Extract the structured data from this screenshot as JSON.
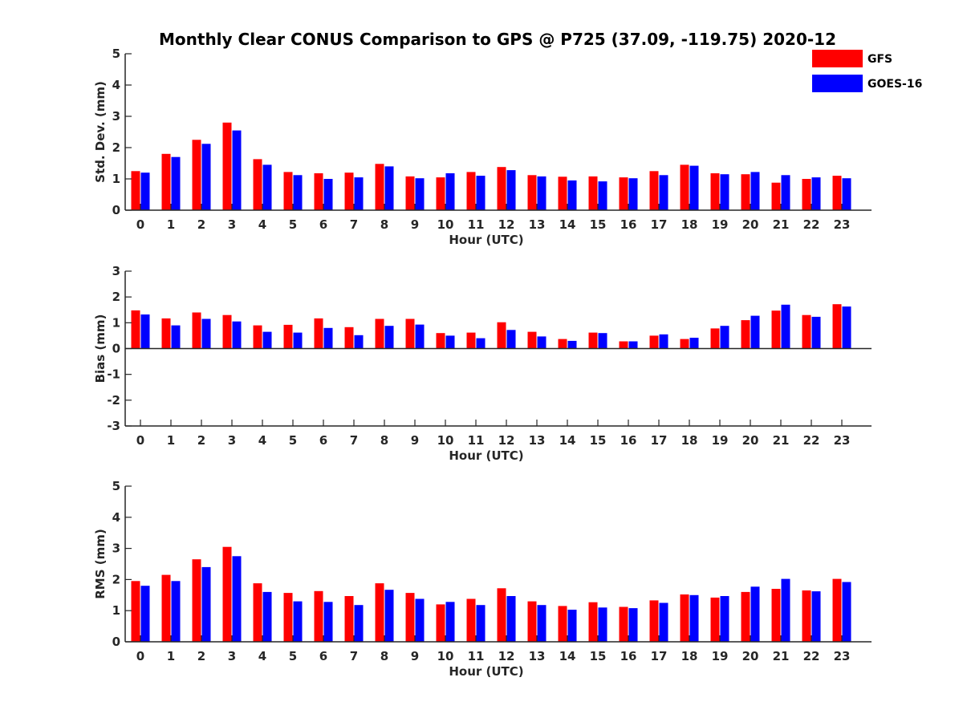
{
  "chart_data": {
    "type": "bar",
    "title": "Monthly Clear CONUS Comparison to GPS @ P725 (37.09, -119.75) 2020-12",
    "legend": {
      "placement": "top-right",
      "entries": [
        {
          "name": "GFS",
          "color": "#ff0000"
        },
        {
          "name": "GOES-16",
          "color": "#0000ff"
        }
      ]
    },
    "categories": [
      "0",
      "1",
      "2",
      "3",
      "4",
      "5",
      "6",
      "7",
      "8",
      "9",
      "10",
      "11",
      "12",
      "13",
      "14",
      "15",
      "16",
      "17",
      "18",
      "19",
      "20",
      "21",
      "22",
      "23"
    ],
    "panels": [
      {
        "ylabel": "Std. Dev. (mm)",
        "xlabel": "Hour (UTC)",
        "ylim": [
          0,
          5
        ],
        "yticks": [
          0,
          1,
          2,
          3,
          4,
          5
        ],
        "series": [
          {
            "name": "GFS",
            "values": [
              1.25,
              1.8,
              2.25,
              2.8,
              1.63,
              1.22,
              1.18,
              1.2,
              1.48,
              1.08,
              1.05,
              1.22,
              1.38,
              1.12,
              1.07,
              1.08,
              1.05,
              1.25,
              1.45,
              1.18,
              1.15,
              0.88,
              1.0,
              1.1
            ]
          },
          {
            "name": "GOES-16",
            "values": [
              1.2,
              1.7,
              2.12,
              2.55,
              1.45,
              1.12,
              1.0,
              1.05,
              1.4,
              1.02,
              1.18,
              1.1,
              1.28,
              1.08,
              0.95,
              0.92,
              1.02,
              1.12,
              1.42,
              1.15,
              1.22,
              1.12,
              1.05,
              1.02
            ]
          }
        ]
      },
      {
        "ylabel": "Bias (mm)",
        "xlabel": "Hour (UTC)",
        "ylim": [
          -3,
          3
        ],
        "yticks": [
          -3,
          -2,
          -1,
          0,
          1,
          2,
          3
        ],
        "series": [
          {
            "name": "GFS",
            "values": [
              1.48,
              1.17,
              1.4,
              1.3,
              0.9,
              0.92,
              1.17,
              0.83,
              1.15,
              1.15,
              0.6,
              0.62,
              1.02,
              0.65,
              0.37,
              0.62,
              0.28,
              0.5,
              0.37,
              0.78,
              1.1,
              1.47,
              1.3,
              1.72
            ]
          },
          {
            "name": "GOES-16",
            "values": [
              1.32,
              0.9,
              1.15,
              1.05,
              0.65,
              0.62,
              0.8,
              0.52,
              0.88,
              0.93,
              0.5,
              0.4,
              0.72,
              0.47,
              0.3,
              0.6,
              0.28,
              0.55,
              0.42,
              0.88,
              1.27,
              1.7,
              1.23,
              1.63
            ]
          }
        ]
      },
      {
        "ylabel": "RMS (mm)",
        "xlabel": "Hour (UTC)",
        "ylim": [
          0,
          5
        ],
        "yticks": [
          0,
          1,
          2,
          3,
          4,
          5
        ],
        "series": [
          {
            "name": "GFS",
            "values": [
              1.95,
              2.15,
              2.65,
              3.05,
              1.88,
              1.57,
              1.63,
              1.47,
              1.88,
              1.57,
              1.2,
              1.38,
              1.72,
              1.3,
              1.15,
              1.27,
              1.12,
              1.33,
              1.52,
              1.42,
              1.6,
              1.7,
              1.65,
              2.02
            ]
          },
          {
            "name": "GOES-16",
            "values": [
              1.8,
              1.95,
              2.4,
              2.75,
              1.6,
              1.3,
              1.28,
              1.18,
              1.67,
              1.38,
              1.28,
              1.18,
              1.47,
              1.18,
              1.03,
              1.1,
              1.08,
              1.25,
              1.5,
              1.47,
              1.77,
              2.02,
              1.62,
              1.92
            ]
          }
        ]
      }
    ]
  }
}
